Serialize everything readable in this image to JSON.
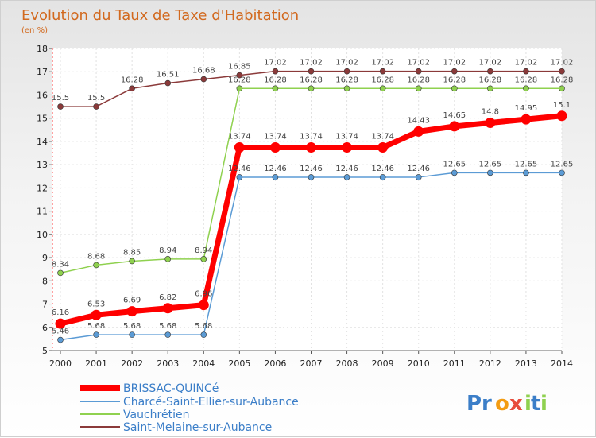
{
  "chart_data": {
    "type": "line",
    "title": "Evolution du Taux de Taxe d'Habitation",
    "subtitle": "(en %)",
    "xlabel": "",
    "ylabel": "",
    "x": [
      "2000",
      "2001",
      "2002",
      "2003",
      "2004",
      "2005",
      "2006",
      "2007",
      "2008",
      "2009",
      "2010",
      "2011",
      "2012",
      "2013",
      "2014"
    ],
    "ylim": [
      5,
      18
    ],
    "yticks": [
      "5",
      "6",
      "7",
      "8",
      "9",
      "10",
      "11",
      "12",
      "13",
      "14",
      "15",
      "16",
      "17",
      "18"
    ],
    "grid": true,
    "legend_position": "bottom-left",
    "series": [
      {
        "name": "Saint-Melaine-sur-Aubance",
        "color": "#8b3a3a",
        "values": [
          15.5,
          15.5,
          16.28,
          16.51,
          16.68,
          16.85,
          17.02,
          17.02,
          17.02,
          17.02,
          17.02,
          17.02,
          17.02,
          17.02,
          17.02
        ],
        "labels": [
          "15.5",
          "15.5",
          "16.28",
          "16.51",
          "16.68",
          "16.85",
          "17.02",
          "17.02",
          "17.02",
          "17.02",
          "17.02",
          "17.02",
          "17.02",
          "17.02",
          "17.02"
        ]
      },
      {
        "name": "Vauchrétien",
        "color": "#8fd14f",
        "values": [
          8.34,
          8.68,
          8.85,
          8.94,
          8.94,
          16.28,
          16.28,
          16.28,
          16.28,
          16.28,
          16.28,
          16.28,
          16.28,
          16.28,
          16.28
        ],
        "labels": [
          "8.34",
          "8.68",
          "8.85",
          "8.94",
          "8.94",
          "16.28",
          "16.28",
          "16.28",
          "16.28",
          "16.28",
          "16.28",
          "16.28",
          "16.28",
          "16.28",
          "16.28"
        ]
      },
      {
        "name": "Charcé-Saint-Ellier-sur-Aubance",
        "color": "#5b9bd5",
        "values": [
          5.46,
          5.68,
          5.68,
          5.68,
          5.68,
          12.46,
          12.46,
          12.46,
          12.46,
          12.46,
          12.46,
          12.65,
          12.65,
          12.65,
          12.65
        ],
        "labels": [
          "5.46",
          "5.68",
          "5.68",
          "5.68",
          "5.68",
          "12.46",
          "12.46",
          "12.46",
          "12.46",
          "12.46",
          "12.46",
          "12.65",
          "12.65",
          "12.65",
          "12.65"
        ]
      },
      {
        "name": "BRISSAC-QUINCé",
        "color": "#ff0000",
        "values": [
          6.16,
          6.53,
          6.69,
          6.82,
          6.96,
          13.74,
          13.74,
          13.74,
          13.74,
          13.74,
          14.43,
          14.65,
          14.8,
          14.95,
          15.1
        ],
        "labels": [
          "6.16",
          "6.53",
          "6.69",
          "6.82",
          "6.96",
          "13.74",
          "13.74",
          "13.74",
          "13.74",
          "13.74",
          "14.43",
          "14.65",
          "14.8",
          "14.95",
          "15.1"
        ]
      }
    ],
    "legend_order": [
      "BRISSAC-QUINCé",
      "Charcé-Saint-Ellier-sur-Aubance",
      "Vauchrétien",
      "Saint-Melaine-sur-Aubance"
    ]
  },
  "logo": {
    "text": "Proxiti",
    "letters": [
      "P",
      "r",
      "o",
      "x",
      "i",
      "t",
      "i"
    ],
    "colors": [
      "#3b7ec8",
      "#3b7ec8",
      "#f39c12",
      "#e74c3c",
      "#8fd14f",
      "#3b7ec8",
      "#8fd14f"
    ]
  }
}
